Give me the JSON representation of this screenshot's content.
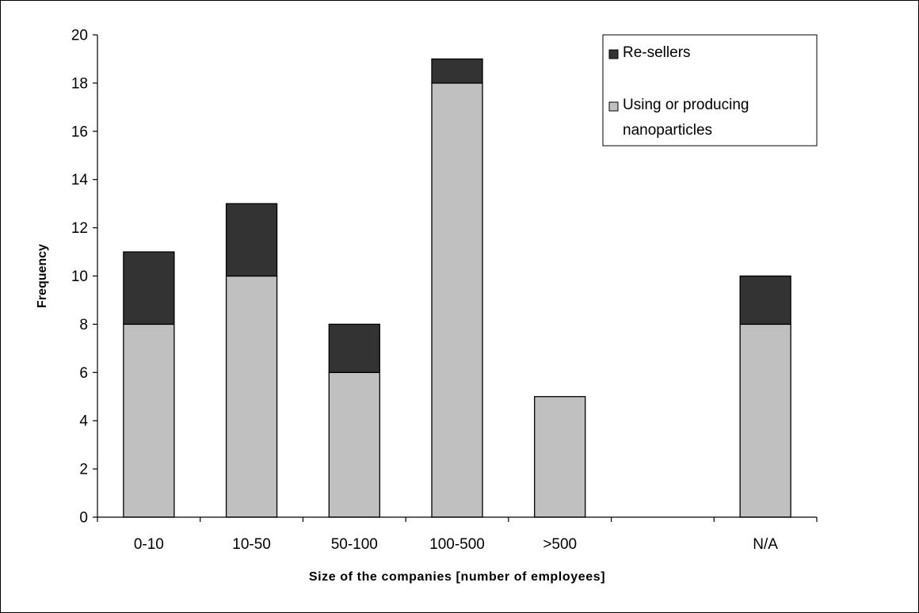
{
  "chart_data": {
    "type": "bar",
    "stacked": true,
    "categories": [
      "0-10",
      "10-50",
      "50-100",
      "100-500",
      ">500",
      "",
      "N/A"
    ],
    "series": [
      {
        "name": "Using or producing nanoparticles",
        "values": [
          8,
          10,
          6,
          18,
          5,
          0,
          8
        ],
        "color": "#c0c0c0"
      },
      {
        "name": "Re-sellers",
        "values": [
          3,
          3,
          2,
          1,
          0,
          0,
          2
        ],
        "color": "#333333"
      }
    ],
    "xlabel": "Size of the companies [number of employees]",
    "ylabel": "Frequency",
    "ylim": [
      0,
      20
    ],
    "yticks": [
      0,
      2,
      4,
      6,
      8,
      10,
      12,
      14,
      16,
      18,
      20
    ],
    "grid": false,
    "legend": {
      "placement": "top-right",
      "entries": [
        {
          "lines": [
            "Re-sellers"
          ],
          "color": "#333333"
        },
        {
          "lines": [
            "Using or producing",
            "nanoparticles"
          ],
          "color": "#c0c0c0"
        }
      ]
    }
  }
}
